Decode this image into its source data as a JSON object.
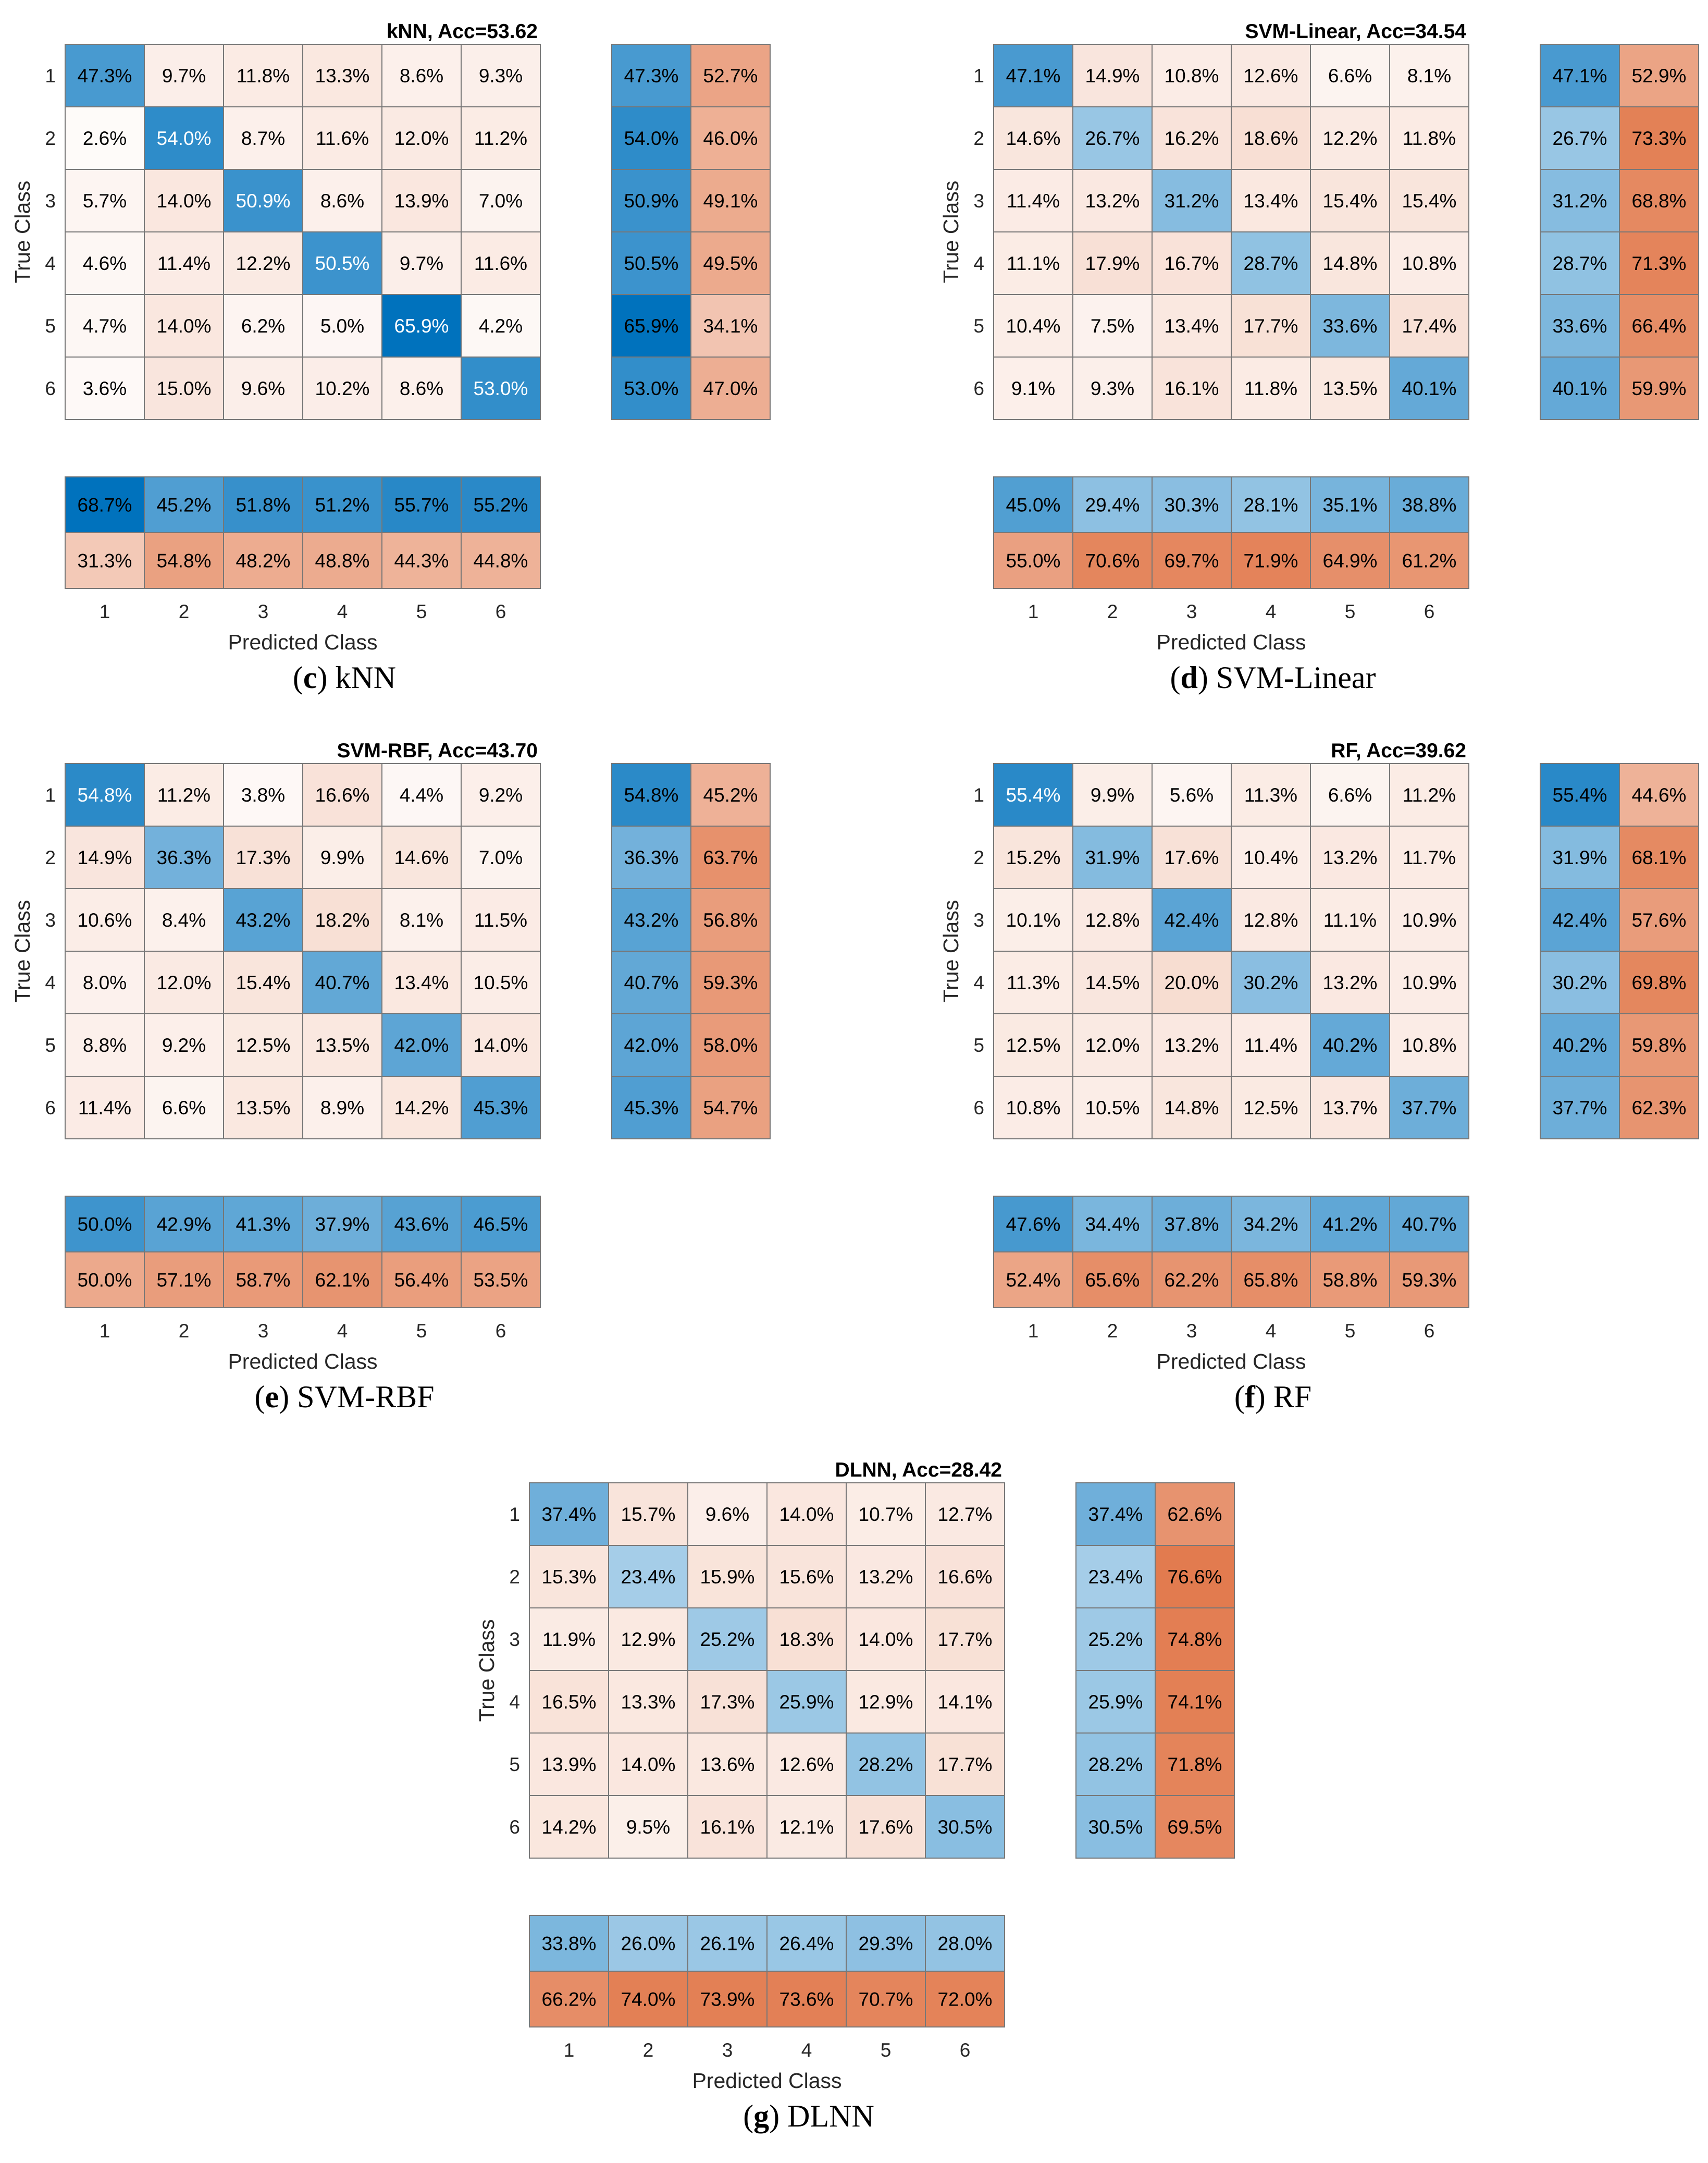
{
  "chart_data": [
    {
      "type": "heatmap",
      "panel": "c",
      "title": "kNN, Acc=53.62",
      "caption_letter": "c",
      "caption_name": "kNN",
      "xlabel": "Predicted Class",
      "ylabel": "True Class",
      "classes": [
        "1",
        "2",
        "3",
        "4",
        "5",
        "6"
      ],
      "matrix": [
        [
          "47.3%",
          "9.7%",
          "11.8%",
          "13.3%",
          "8.6%",
          "9.3%"
        ],
        [
          "2.6%",
          "54.0%",
          "8.7%",
          "11.6%",
          "12.0%",
          "11.2%"
        ],
        [
          "5.7%",
          "14.0%",
          "50.9%",
          "8.6%",
          "13.9%",
          "7.0%"
        ],
        [
          "4.6%",
          "11.4%",
          "12.2%",
          "50.5%",
          "9.7%",
          "11.6%"
        ],
        [
          "4.7%",
          "14.0%",
          "6.2%",
          "5.0%",
          "65.9%",
          "4.2%"
        ],
        [
          "3.6%",
          "15.0%",
          "9.6%",
          "10.2%",
          "8.6%",
          "53.0%"
        ]
      ],
      "row_summary": [
        [
          "47.3%",
          "52.7%"
        ],
        [
          "54.0%",
          "46.0%"
        ],
        [
          "50.9%",
          "49.1%"
        ],
        [
          "50.5%",
          "49.5%"
        ],
        [
          "65.9%",
          "34.1%"
        ],
        [
          "53.0%",
          "47.0%"
        ]
      ],
      "col_summary": [
        [
          "68.7%",
          "45.2%",
          "51.8%",
          "51.2%",
          "55.7%",
          "55.2%"
        ],
        [
          "31.3%",
          "54.8%",
          "48.2%",
          "48.8%",
          "44.3%",
          "44.8%"
        ]
      ]
    },
    {
      "type": "heatmap",
      "panel": "d",
      "title": "SVM-Linear, Acc=34.54",
      "caption_letter": "d",
      "caption_name": "SVM-Linear",
      "xlabel": "Predicted Class",
      "ylabel": "True Class",
      "classes": [
        "1",
        "2",
        "3",
        "4",
        "5",
        "6"
      ],
      "matrix": [
        [
          "47.1%",
          "14.9%",
          "10.8%",
          "12.6%",
          "6.6%",
          "8.1%"
        ],
        [
          "14.6%",
          "26.7%",
          "16.2%",
          "18.6%",
          "12.2%",
          "11.8%"
        ],
        [
          "11.4%",
          "13.2%",
          "31.2%",
          "13.4%",
          "15.4%",
          "15.4%"
        ],
        [
          "11.1%",
          "17.9%",
          "16.7%",
          "28.7%",
          "14.8%",
          "10.8%"
        ],
        [
          "10.4%",
          "7.5%",
          "13.4%",
          "17.7%",
          "33.6%",
          "17.4%"
        ],
        [
          "9.1%",
          "9.3%",
          "16.1%",
          "11.8%",
          "13.5%",
          "40.1%"
        ]
      ],
      "row_summary": [
        [
          "47.1%",
          "52.9%"
        ],
        [
          "26.7%",
          "73.3%"
        ],
        [
          "31.2%",
          "68.8%"
        ],
        [
          "28.7%",
          "71.3%"
        ],
        [
          "33.6%",
          "66.4%"
        ],
        [
          "40.1%",
          "59.9%"
        ]
      ],
      "col_summary": [
        [
          "45.0%",
          "29.4%",
          "30.3%",
          "28.1%",
          "35.1%",
          "38.8%"
        ],
        [
          "55.0%",
          "70.6%",
          "69.7%",
          "71.9%",
          "64.9%",
          "61.2%"
        ]
      ]
    },
    {
      "type": "heatmap",
      "panel": "e",
      "title": "SVM-RBF, Acc=43.70",
      "caption_letter": "e",
      "caption_name": "SVM-RBF",
      "xlabel": "Predicted Class",
      "ylabel": "True Class",
      "classes": [
        "1",
        "2",
        "3",
        "4",
        "5",
        "6"
      ],
      "matrix": [
        [
          "54.8%",
          "11.2%",
          "3.8%",
          "16.6%",
          "4.4%",
          "9.2%"
        ],
        [
          "14.9%",
          "36.3%",
          "17.3%",
          "9.9%",
          "14.6%",
          "7.0%"
        ],
        [
          "10.6%",
          "8.4%",
          "43.2%",
          "18.2%",
          "8.1%",
          "11.5%"
        ],
        [
          "8.0%",
          "12.0%",
          "15.4%",
          "40.7%",
          "13.4%",
          "10.5%"
        ],
        [
          "8.8%",
          "9.2%",
          "12.5%",
          "13.5%",
          "42.0%",
          "14.0%"
        ],
        [
          "11.4%",
          "6.6%",
          "13.5%",
          "8.9%",
          "14.2%",
          "45.3%"
        ]
      ],
      "row_summary": [
        [
          "54.8%",
          "45.2%"
        ],
        [
          "36.3%",
          "63.7%"
        ],
        [
          "43.2%",
          "56.8%"
        ],
        [
          "40.7%",
          "59.3%"
        ],
        [
          "42.0%",
          "58.0%"
        ],
        [
          "45.3%",
          "54.7%"
        ]
      ],
      "col_summary": [
        [
          "50.0%",
          "42.9%",
          "41.3%",
          "37.9%",
          "43.6%",
          "46.5%"
        ],
        [
          "50.0%",
          "57.1%",
          "58.7%",
          "62.1%",
          "56.4%",
          "53.5%"
        ]
      ]
    },
    {
      "type": "heatmap",
      "panel": "f",
      "title": "RF, Acc=39.62",
      "caption_letter": "f",
      "caption_name": "RF",
      "xlabel": "Predicted Class",
      "ylabel": "True Class",
      "classes": [
        "1",
        "2",
        "3",
        "4",
        "5",
        "6"
      ],
      "matrix": [
        [
          "55.4%",
          "9.9%",
          "5.6%",
          "11.3%",
          "6.6%",
          "11.2%"
        ],
        [
          "15.2%",
          "31.9%",
          "17.6%",
          "10.4%",
          "13.2%",
          "11.7%"
        ],
        [
          "10.1%",
          "12.8%",
          "42.4%",
          "12.8%",
          "11.1%",
          "10.9%"
        ],
        [
          "11.3%",
          "14.5%",
          "20.0%",
          "30.2%",
          "13.2%",
          "10.9%"
        ],
        [
          "12.5%",
          "12.0%",
          "13.2%",
          "11.4%",
          "40.2%",
          "10.8%"
        ],
        [
          "10.8%",
          "10.5%",
          "14.8%",
          "12.5%",
          "13.7%",
          "37.7%"
        ]
      ],
      "row_summary": [
        [
          "55.4%",
          "44.6%"
        ],
        [
          "31.9%",
          "68.1%"
        ],
        [
          "42.4%",
          "57.6%"
        ],
        [
          "30.2%",
          "69.8%"
        ],
        [
          "40.2%",
          "59.8%"
        ],
        [
          "37.7%",
          "62.3%"
        ]
      ],
      "col_summary": [
        [
          "47.6%",
          "34.4%",
          "37.8%",
          "34.2%",
          "41.2%",
          "40.7%"
        ],
        [
          "52.4%",
          "65.6%",
          "62.2%",
          "65.8%",
          "58.8%",
          "59.3%"
        ]
      ]
    },
    {
      "type": "heatmap",
      "panel": "g",
      "title": "DLNN, Acc=28.42",
      "caption_letter": "g",
      "caption_name": "DLNN",
      "xlabel": "Predicted Class",
      "ylabel": "True Class",
      "classes": [
        "1",
        "2",
        "3",
        "4",
        "5",
        "6"
      ],
      "matrix": [
        [
          "37.4%",
          "15.7%",
          "9.6%",
          "14.0%",
          "10.7%",
          "12.7%"
        ],
        [
          "15.3%",
          "23.4%",
          "15.9%",
          "15.6%",
          "13.2%",
          "16.6%"
        ],
        [
          "11.9%",
          "12.9%",
          "25.2%",
          "18.3%",
          "14.0%",
          "17.7%"
        ],
        [
          "16.5%",
          "13.3%",
          "17.3%",
          "25.9%",
          "12.9%",
          "14.1%"
        ],
        [
          "13.9%",
          "14.0%",
          "13.6%",
          "12.6%",
          "28.2%",
          "17.7%"
        ],
        [
          "14.2%",
          "9.5%",
          "16.1%",
          "12.1%",
          "17.6%",
          "30.5%"
        ]
      ],
      "row_summary": [
        [
          "37.4%",
          "62.6%"
        ],
        [
          "23.4%",
          "76.6%"
        ],
        [
          "25.2%",
          "74.8%"
        ],
        [
          "25.9%",
          "74.1%"
        ],
        [
          "28.2%",
          "71.8%"
        ],
        [
          "30.5%",
          "69.5%"
        ]
      ],
      "col_summary": [
        [
          "33.8%",
          "26.0%",
          "26.1%",
          "26.4%",
          "29.3%",
          "28.0%"
        ],
        [
          "66.2%",
          "74.0%",
          "73.9%",
          "73.6%",
          "70.7%",
          "72.0%"
        ]
      ]
    }
  ],
  "colors": {
    "blue_dark": "#0072BD",
    "orange_dark": "#D95319",
    "light": "#FFFFFF",
    "grid": "#777777"
  }
}
